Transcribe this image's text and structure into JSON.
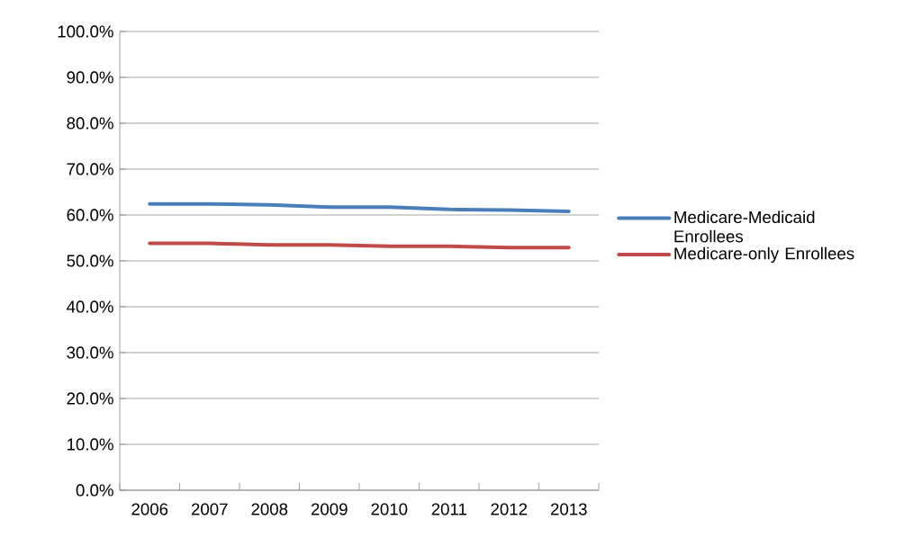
{
  "chart_data": {
    "type": "line",
    "categories": [
      "2006",
      "2007",
      "2008",
      "2009",
      "2010",
      "2011",
      "2012",
      "2013"
    ],
    "series": [
      {
        "name": "Medicare-Medicaid Enrollees",
        "color": "#4a7ebb",
        "values": [
          62.4,
          62.4,
          62.2,
          61.7,
          61.7,
          61.2,
          61.1,
          60.8
        ]
      },
      {
        "name": "Medicare-only Enrollees",
        "color": "#be4b48",
        "values": [
          53.8,
          53.8,
          53.5,
          53.5,
          53.2,
          53.2,
          52.9,
          52.9
        ]
      }
    ],
    "ylim": [
      0,
      100
    ],
    "yticks": [
      {
        "value": 0,
        "label": "0.0%"
      },
      {
        "value": 10,
        "label": "10.0%"
      },
      {
        "value": 20,
        "label": "20.0%"
      },
      {
        "value": 30,
        "label": "30.0%"
      },
      {
        "value": 40,
        "label": "40.0%"
      },
      {
        "value": 50,
        "label": "50.0%"
      },
      {
        "value": 60,
        "label": "60.0%"
      },
      {
        "value": 70,
        "label": "70.0%"
      },
      {
        "value": 80,
        "label": "80.0%"
      },
      {
        "value": 90,
        "label": "90.0%"
      },
      {
        "value": 100,
        "label": "100.0%"
      }
    ],
    "grid": "y",
    "legend": "right",
    "marker": "none",
    "line_style": "solid"
  }
}
